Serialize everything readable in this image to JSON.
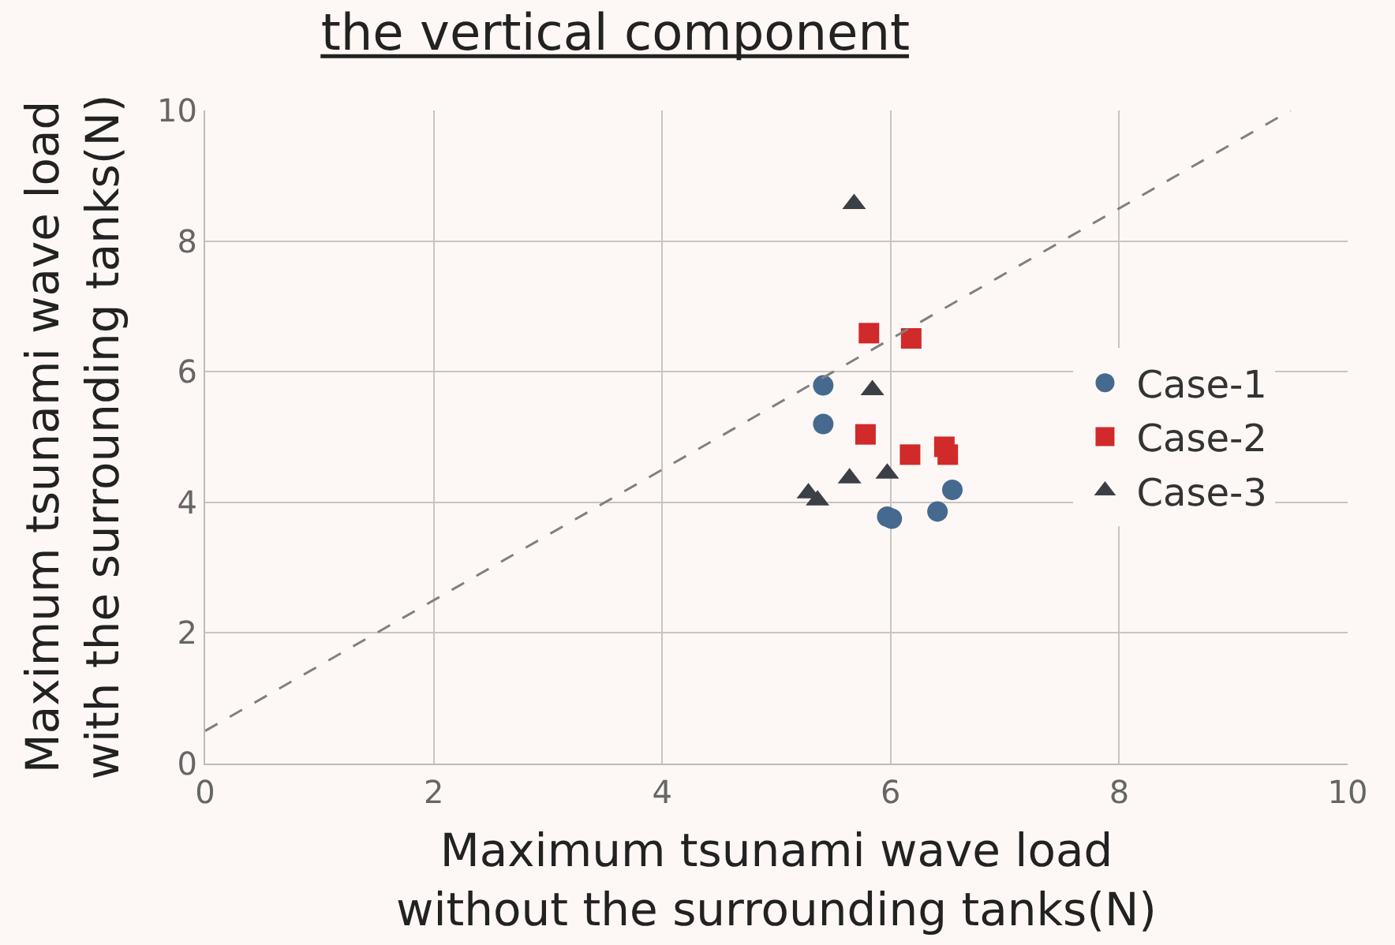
{
  "chart_data": {
    "type": "scatter",
    "title": "the vertical component",
    "xlabel": "Maximum tsunami wave load\nwithout the surrounding tanks(N)",
    "ylabel": "Maximum tsunami wave load\nwith the surrounding tanks(N)",
    "xlim": [
      0,
      10
    ],
    "ylim": [
      0,
      10
    ],
    "xticks": [
      0,
      2,
      4,
      6,
      8,
      10
    ],
    "yticks": [
      0,
      2,
      4,
      6,
      8,
      10
    ],
    "grid": true,
    "legend": "right",
    "series": [
      {
        "name": "Case-1",
        "color": "#46698f",
        "marker": "circle",
        "x": [
          5.41,
          5.41,
          5.97,
          6.01,
          6.41,
          6.54
        ],
        "values": [
          5.79,
          5.2,
          3.78,
          3.75,
          3.86,
          4.19
        ]
      },
      {
        "name": "Case-2",
        "color": "#d12a2a",
        "marker": "square",
        "x": [
          5.81,
          6.18,
          5.78,
          6.17,
          6.47,
          6.5
        ],
        "values": [
          6.59,
          6.51,
          5.04,
          4.73,
          4.85,
          4.73
        ]
      },
      {
        "name": "Case-3",
        "color": "#3d3f46",
        "marker": "triangle",
        "x": [
          5.68,
          5.84,
          5.64,
          5.97,
          5.28,
          5.36
        ],
        "values": [
          8.57,
          5.72,
          4.37,
          4.44,
          4.14,
          4.03
        ]
      },
      {
        "type": "line",
        "color": "#808080",
        "line_style": "dashed",
        "marker": "none",
        "x": [
          0,
          9.5
        ],
        "values": [
          0.5,
          10
        ]
      }
    ]
  }
}
